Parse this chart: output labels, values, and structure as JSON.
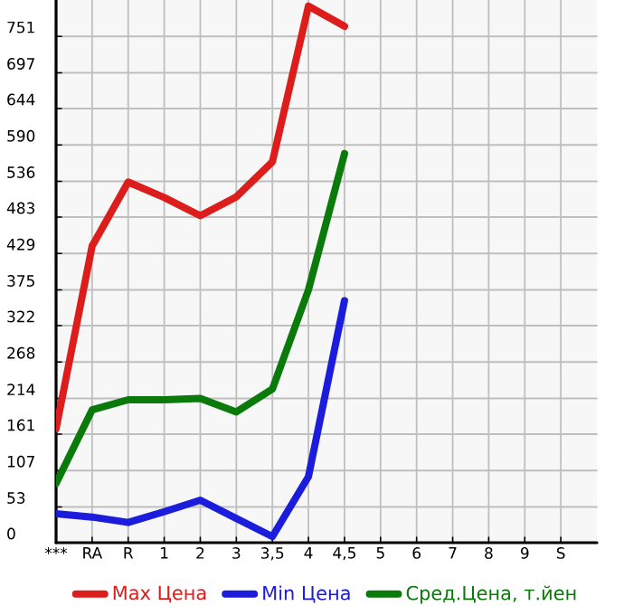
{
  "chart_data": {
    "type": "line",
    "categories": [
      "***",
      "RA",
      "R",
      "1",
      "2",
      "3",
      "3,5",
      "4",
      "4,5",
      "5",
      "6",
      "7",
      "8",
      "9",
      "S"
    ],
    "series": [
      {
        "name": "Max Цена",
        "color": "#dd1c1c",
        "values": [
          169,
          440,
          535,
          512,
          485,
          513,
          565,
          796,
          766,
          null,
          null,
          null,
          null,
          null,
          null
        ]
      },
      {
        "name": "Min Цена",
        "color": "#1c1cdd",
        "values": [
          43,
          38,
          30,
          46,
          63,
          36,
          9,
          98,
          359,
          null,
          null,
          null,
          null,
          null,
          null
        ]
      },
      {
        "name": "Сред.Цена, т.йен",
        "color": "#0a7a0a",
        "values": [
          88,
          197,
          212,
          212,
          214,
          194,
          228,
          375,
          577,
          null,
          null,
          null,
          null,
          null,
          null
        ]
      }
    ],
    "ylim": [
      0,
      805
    ],
    "yticks": [
      0,
      53,
      107,
      161,
      214,
      268,
      322,
      375,
      429,
      483,
      536,
      590,
      644,
      697,
      751
    ],
    "grid": true,
    "legend": "bottom",
    "marker": "none",
    "line_style": "solid"
  }
}
